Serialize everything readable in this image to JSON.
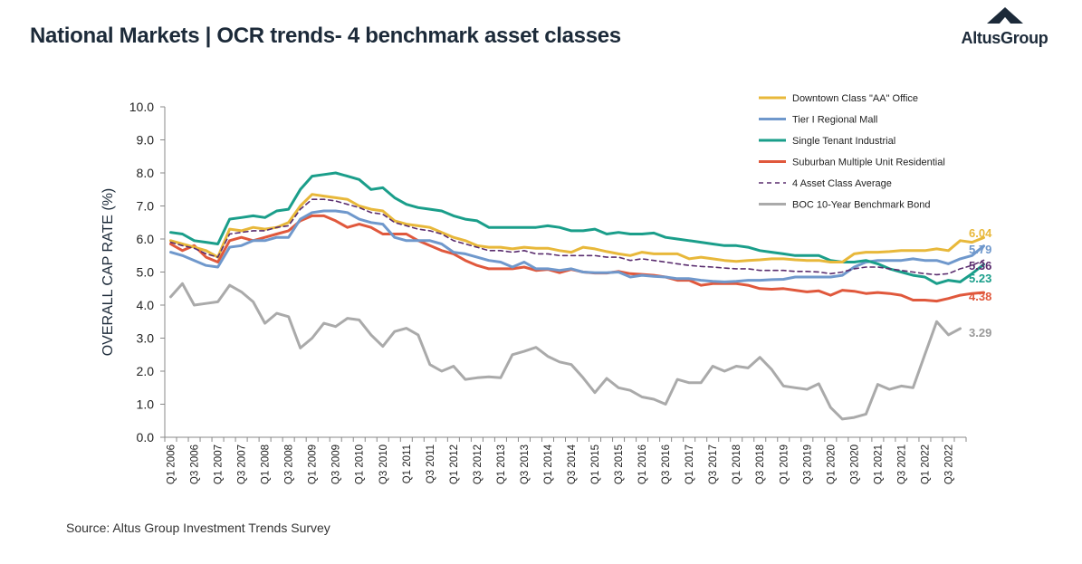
{
  "header": {
    "title": "National Markets | OCR trends- 4 benchmark asset classes",
    "logo_text": "AltusGroup"
  },
  "footer": {
    "source": "Source: Altus Group Investment Trends Survey"
  },
  "chart_data": {
    "type": "line",
    "title": "National Markets | OCR trends- 4 benchmark asset classes",
    "xlabel": "",
    "ylabel": "OVERALL CAP RATE (%)",
    "ylim": [
      0,
      10
    ],
    "y_ticks": [
      "0.0",
      "1.0",
      "2.0",
      "3.0",
      "4.0",
      "5.0",
      "6.0",
      "7.0",
      "8.0",
      "9.0",
      "10.0"
    ],
    "x_tick_labels": [
      "Q1 2006",
      "Q3 2006",
      "Q1 2007",
      "Q3 2007",
      "Q1 2008",
      "Q3 2008",
      "Q1 2009",
      "Q3 2009",
      "Q1 2010",
      "Q3 2010",
      "Q1 2011",
      "Q3 2011",
      "Q1 2012",
      "Q3 2012",
      "Q1 2013",
      "Q3 2013",
      "Q1 2014",
      "Q3 2014",
      "Q1 2015",
      "Q3 2015",
      "Q1 2016",
      "Q3 2016",
      "Q1 2017",
      "Q3 2017",
      "Q1 2018",
      "Q3 2018",
      "Q1 2019",
      "Q3 2019",
      "Q1 2020",
      "Q3 2020",
      "Q1 2021",
      "Q3 2021",
      "Q1 2022",
      "Q3 2022"
    ],
    "legend_position": "top-right",
    "grid": false,
    "series": [
      {
        "name": "Downtown Class \"AA\" Office",
        "color": "#e8b83a",
        "dashed": false,
        "end_label": "6.04",
        "values": [
          5.95,
          5.85,
          5.75,
          5.65,
          5.45,
          6.3,
          6.25,
          6.35,
          6.3,
          6.35,
          6.5,
          7.0,
          7.35,
          7.3,
          7.25,
          7.2,
          7.0,
          6.9,
          6.85,
          6.55,
          6.45,
          6.4,
          6.35,
          6.2,
          6.05,
          5.95,
          5.8,
          5.75,
          5.75,
          5.7,
          5.75,
          5.72,
          5.72,
          5.65,
          5.6,
          5.75,
          5.7,
          5.62,
          5.55,
          5.5,
          5.6,
          5.55,
          5.55,
          5.55,
          5.4,
          5.45,
          5.4,
          5.35,
          5.32,
          5.35,
          5.37,
          5.4,
          5.4,
          5.37,
          5.35,
          5.35,
          5.3,
          5.3,
          5.55,
          5.6,
          5.6,
          5.62,
          5.65,
          5.65,
          5.65,
          5.7,
          5.65,
          5.95,
          5.9,
          6.04
        ]
      },
      {
        "name": "Tier I Regional Mall",
        "color": "#6f98cc",
        "dashed": false,
        "end_label": "5.79",
        "values": [
          5.6,
          5.5,
          5.35,
          5.2,
          5.15,
          5.75,
          5.8,
          5.95,
          5.95,
          6.05,
          6.05,
          6.6,
          6.8,
          6.85,
          6.85,
          6.8,
          6.6,
          6.5,
          6.45,
          6.05,
          5.95,
          5.95,
          5.95,
          5.85,
          5.6,
          5.55,
          5.45,
          5.35,
          5.3,
          5.15,
          5.3,
          5.1,
          5.1,
          5.05,
          5.1,
          5.0,
          4.98,
          4.98,
          5.0,
          4.85,
          4.9,
          4.87,
          4.85,
          4.8,
          4.8,
          4.75,
          4.72,
          4.7,
          4.72,
          4.75,
          4.75,
          4.77,
          4.78,
          4.85,
          4.85,
          4.85,
          4.85,
          4.9,
          5.15,
          5.3,
          5.35,
          5.35,
          5.35,
          5.4,
          5.35,
          5.35,
          5.25,
          5.4,
          5.5,
          5.79
        ]
      },
      {
        "name": "Single Tenant Industrial",
        "color": "#1a9e8a",
        "dashed": false,
        "end_label": "5.23",
        "values": [
          6.2,
          6.15,
          5.95,
          5.9,
          5.85,
          6.6,
          6.65,
          6.7,
          6.65,
          6.85,
          6.9,
          7.5,
          7.9,
          7.95,
          8.0,
          7.9,
          7.8,
          7.5,
          7.55,
          7.25,
          7.05,
          6.95,
          6.9,
          6.85,
          6.7,
          6.6,
          6.55,
          6.35,
          6.35,
          6.35,
          6.35,
          6.35,
          6.4,
          6.35,
          6.25,
          6.25,
          6.3,
          6.15,
          6.2,
          6.15,
          6.15,
          6.18,
          6.05,
          6.0,
          5.95,
          5.9,
          5.85,
          5.8,
          5.8,
          5.75,
          5.65,
          5.6,
          5.55,
          5.5,
          5.5,
          5.5,
          5.35,
          5.3,
          5.3,
          5.35,
          5.25,
          5.1,
          5.0,
          4.9,
          4.85,
          4.65,
          4.75,
          4.7,
          4.95,
          5.23
        ]
      },
      {
        "name": "Suburban Multiple Unit Residential",
        "color": "#e0583c",
        "dashed": false,
        "end_label": "4.38",
        "values": [
          5.85,
          5.65,
          5.8,
          5.45,
          5.3,
          5.95,
          6.05,
          5.95,
          6.05,
          6.15,
          6.25,
          6.55,
          6.7,
          6.7,
          6.55,
          6.35,
          6.45,
          6.35,
          6.15,
          6.15,
          6.15,
          5.95,
          5.8,
          5.65,
          5.55,
          5.35,
          5.2,
          5.1,
          5.1,
          5.1,
          5.15,
          5.05,
          5.08,
          4.98,
          5.08,
          5.0,
          4.97,
          4.97,
          5.02,
          4.95,
          4.93,
          4.9,
          4.85,
          4.75,
          4.75,
          4.6,
          4.65,
          4.65,
          4.65,
          4.6,
          4.5,
          4.48,
          4.5,
          4.45,
          4.4,
          4.43,
          4.3,
          4.45,
          4.42,
          4.35,
          4.38,
          4.35,
          4.3,
          4.15,
          4.15,
          4.12,
          4.2,
          4.3,
          4.35,
          4.38
        ]
      },
      {
        "name": "4 Asset Class Average",
        "color": "#5a2d6e",
        "dashed": true,
        "end_label": "5.36",
        "values": [
          5.9,
          5.8,
          5.72,
          5.55,
          5.45,
          6.15,
          6.2,
          6.25,
          6.25,
          6.35,
          6.4,
          6.9,
          7.2,
          7.2,
          7.15,
          7.05,
          6.95,
          6.8,
          6.75,
          6.5,
          6.4,
          6.3,
          6.25,
          6.15,
          5.95,
          5.85,
          5.75,
          5.65,
          5.65,
          5.6,
          5.65,
          5.55,
          5.55,
          5.5,
          5.5,
          5.5,
          5.5,
          5.45,
          5.45,
          5.35,
          5.4,
          5.35,
          5.3,
          5.25,
          5.2,
          5.17,
          5.15,
          5.12,
          5.1,
          5.1,
          5.05,
          5.05,
          5.05,
          5.02,
          5.02,
          5.0,
          4.95,
          5.0,
          5.1,
          5.15,
          5.15,
          5.1,
          5.05,
          5.0,
          4.95,
          4.92,
          4.95,
          5.1,
          5.2,
          5.36
        ]
      },
      {
        "name": "BOC 10-Year Benchmark Bond",
        "color": "#aaaaaa",
        "dashed": false,
        "end_label": "3.29",
        "values": [
          4.25,
          4.65,
          4.0,
          4.05,
          4.1,
          4.6,
          4.4,
          4.1,
          3.45,
          3.75,
          3.65,
          2.7,
          3.0,
          3.45,
          3.35,
          3.6,
          3.55,
          3.1,
          2.75,
          3.2,
          3.3,
          3.1,
          2.2,
          2.0,
          2.15,
          1.75,
          1.8,
          1.83,
          1.8,
          2.5,
          2.6,
          2.72,
          2.45,
          2.28,
          2.2,
          1.8,
          1.35,
          1.78,
          1.5,
          1.42,
          1.22,
          1.15,
          1.0,
          1.75,
          1.65,
          1.65,
          2.15,
          2.0,
          2.15,
          2.1,
          2.42,
          2.05,
          1.55,
          1.5,
          1.45,
          1.62,
          0.9,
          0.55,
          0.6,
          0.7,
          1.6,
          1.45,
          1.55,
          1.5,
          2.5,
          3.5,
          3.1,
          3.29
        ]
      }
    ]
  }
}
